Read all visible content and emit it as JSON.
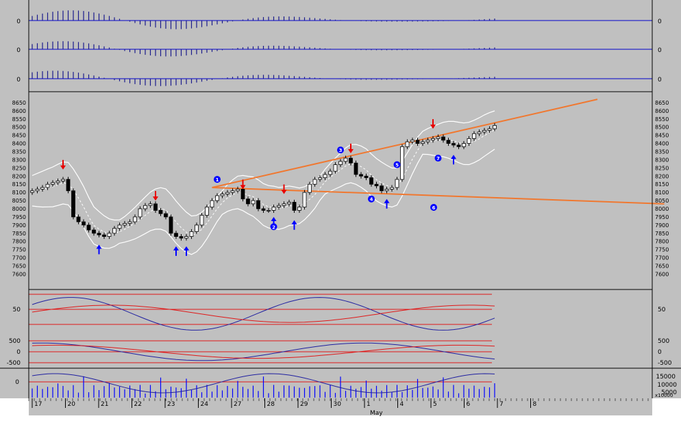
{
  "colors": {
    "background": "#c0c0c0",
    "baseline": "#0000cc",
    "osc_bar": "#1a1a8c",
    "price_up": "#ffffff",
    "price_down": "#000000",
    "signal_red": "#e80000",
    "signal_blue": "#0000ff",
    "trendline": "#f07830",
    "band": "#ffffff",
    "indicator_line_a": "#1f1fa0",
    "indicator_line_b": "#e01818",
    "level_line": "#e01818"
  },
  "chart_data": {
    "type": "candlestick",
    "x_date_labels": [
      "17",
      "20",
      "21",
      "22",
      "23",
      "24",
      "27",
      "28",
      "29",
      "30",
      "1",
      "4",
      "5",
      "6",
      "7",
      "8"
    ],
    "x_month_label": "May",
    "price_axis": {
      "ylim": [
        7560,
        8700
      ],
      "tick_labels": [
        "8650",
        "8600",
        "8550",
        "8500",
        "8450",
        "8400",
        "8350",
        "8300",
        "8250",
        "8200",
        "8150",
        "8100",
        "8050",
        "8000",
        "7950",
        "7900",
        "7850",
        "7800",
        "7750",
        "7700",
        "7650",
        "7600"
      ]
    },
    "oscillator_zero_labels": [
      "0",
      "0",
      "0"
    ],
    "indicator_50_labels": [
      "50",
      "50"
    ],
    "indicator_macd_labels": [
      "500",
      "0",
      "-500"
    ],
    "volume_left_label": "0",
    "volume_axis_labels": [
      "15000",
      "10000",
      "5000"
    ],
    "volume_scale_label": "x10000",
    "wave_labels": [
      "1",
      "2",
      "3",
      "4",
      "5",
      "6",
      "7"
    ],
    "close": [
      8110,
      8120,
      8130,
      8150,
      8160,
      8170,
      8180,
      8110,
      7950,
      7920,
      7900,
      7870,
      7850,
      7840,
      7830,
      7850,
      7880,
      7900,
      7910,
      7920,
      7950,
      8000,
      8020,
      8030,
      7990,
      7970,
      7950,
      7850,
      7830,
      7820,
      7830,
      7860,
      7900,
      7960,
      8010,
      8050,
      8080,
      8090,
      8100,
      8110,
      8120,
      8060,
      8030,
      8050,
      8000,
      7990,
      7990,
      8010,
      8020,
      8030,
      8040,
      7990,
      8010,
      8100,
      8150,
      8180,
      8190,
      8210,
      8230,
      8270,
      8290,
      8310,
      8280,
      8210,
      8200,
      8190,
      8150,
      8140,
      8110,
      8120,
      8130,
      8180,
      8380,
      8410,
      8420,
      8400,
      8410,
      8420,
      8430,
      8440,
      8420,
      8400,
      8390,
      8380,
      8400,
      8430,
      8460,
      8470,
      8480,
      8490,
      8510
    ],
    "buy_arrow_bars": [
      13,
      28,
      30,
      47,
      51,
      69,
      82
    ],
    "sell_arrow_bars": [
      6,
      24,
      41,
      49,
      62,
      78
    ],
    "trendline_upper": {
      "x_bars": [
        35,
        110
      ],
      "y": [
        8130,
        8670
      ]
    },
    "trendline_lower": {
      "x_bars": [
        35,
        123
      ],
      "y": [
        8130,
        8030
      ]
    }
  }
}
